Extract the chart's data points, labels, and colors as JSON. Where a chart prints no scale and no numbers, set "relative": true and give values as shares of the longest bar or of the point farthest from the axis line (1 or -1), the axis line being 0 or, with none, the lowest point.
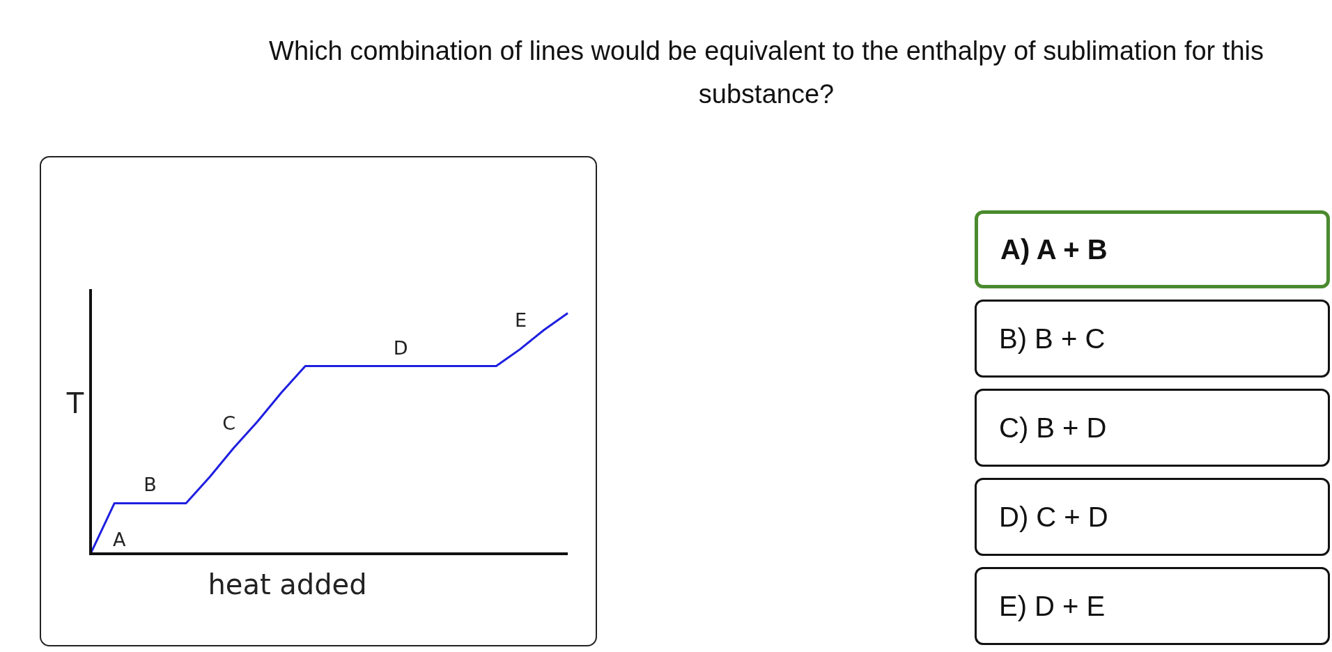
{
  "chart_data": {
    "type": "line",
    "title": "Which combination of lines would be equivalent to the enthalpy of sublimation for this substance?",
    "xlabel": "heat added",
    "ylabel": "T",
    "relative": true,
    "line_style": "solid",
    "categories": [
      null,
      null,
      null,
      null,
      null,
      null,
      null,
      null,
      null,
      null,
      null,
      null,
      null,
      null,
      null,
      null,
      null,
      null,
      null,
      null,
      null
    ],
    "series": [
      {
        "color": "#1f1fe0",
        "values": [
          0,
          0.21,
          0.21,
          0.21,
          0.21,
          0.32,
          0.44,
          0.55,
          0.67,
          0.78,
          0.78,
          0.78,
          0.78,
          0.78,
          0.78,
          0.78,
          0.78,
          0.78,
          0.85,
          0.93,
          1
        ]
      }
    ],
    "annotations": [
      "A",
      "B",
      "C",
      "D",
      "E",
      "A) A + B",
      "B) B + C",
      "C) B + D",
      "D) C + D",
      "E) D + E"
    ]
  }
}
